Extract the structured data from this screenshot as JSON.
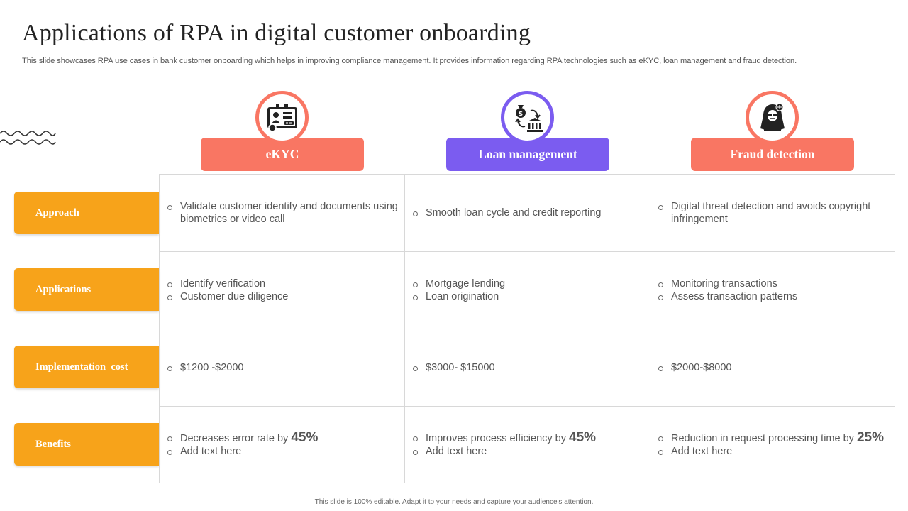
{
  "title": "Applications of RPA in digital customer onboarding",
  "subtitle": "This slide showcases RPA use cases in bank customer onboarding which helps in improving compliance management. It provides information regarding RPA technologies such as eKYC, loan management and fraud detection.",
  "colors": {
    "coral": "#f97663",
    "purple": "#7b5cf0",
    "orange": "#f7a31a"
  },
  "columns": [
    {
      "label": "eKYC",
      "icon": "id-card-icon"
    },
    {
      "label": "Loan management",
      "icon": "money-bank-icon"
    },
    {
      "label": "Fraud detection",
      "icon": "hacker-icon"
    }
  ],
  "rows": [
    {
      "label": "Approach"
    },
    {
      "label": "Applications"
    },
    {
      "label": "Implementation  cost"
    },
    {
      "label": "Benefits"
    }
  ],
  "cells": {
    "approach": [
      [
        "Validate customer identify and documents using biometrics or video call"
      ],
      [
        "Smooth loan cycle and credit reporting"
      ],
      [
        "Digital threat detection and avoids copyright infringement"
      ]
    ],
    "applications": [
      [
        "Identify verification",
        "Customer due diligence"
      ],
      [
        "Mortgage lending",
        "Loan origination"
      ],
      [
        "Monitoring transactions",
        "Assess transaction patterns"
      ]
    ],
    "cost": [
      "$1200 -$2000",
      "$3000- $15000",
      "$2000-$8000"
    ],
    "benefits": [
      {
        "text": "Decreases error rate by ",
        "value": "45%",
        "extra": "Add text here"
      },
      {
        "text": "Improves process efficiency by ",
        "value": "45%",
        "extra": "Add text here"
      },
      {
        "text": "Reduction in request processing time by ",
        "value": "25%",
        "extra": "Add text here"
      }
    ]
  },
  "footer": "This slide is 100% editable. Adapt it to your needs and capture your audience's attention."
}
